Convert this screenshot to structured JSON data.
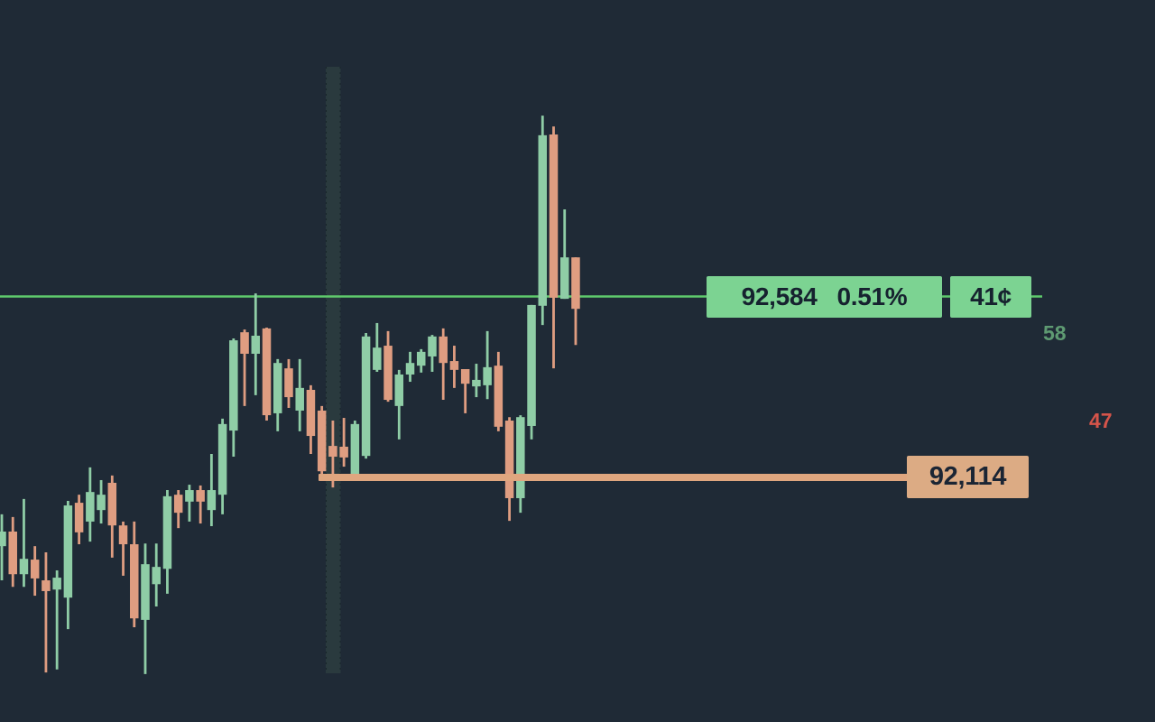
{
  "app": {
    "background_color": "#1f2a36"
  },
  "price_line": {
    "price_label": "92,584",
    "change_label": "0.51%",
    "spread_label": "41¢",
    "price_value": 92584,
    "line_color": "#5fc96c",
    "box_color": "#7cd392",
    "text_color": "#16222f"
  },
  "support_ray": {
    "price_label": "92,114",
    "price_value": 92114,
    "line_color": "#dfa67f",
    "box_color": "#dcab84",
    "text_color": "#1b2534"
  },
  "indicators": [
    {
      "value": "58",
      "color": "#5e9a72"
    },
    {
      "value": "47",
      "color": "#d5544a"
    }
  ],
  "highlight_band": {
    "color": "#2a3a3e",
    "edge_color": "rgba(10,22,24,0.55)"
  },
  "chart_data": {
    "type": "candlestick",
    "title": "",
    "xlabel": "",
    "ylabel": "",
    "x_axis_labels_visible": false,
    "y_axis_labels_visible": false,
    "grid": false,
    "visible_price_levels": [
      92584,
      92114
    ],
    "up_color": "#8fcda6",
    "down_color": "#df9d81",
    "candles_ohlc": [
      [
        91935,
        92018,
        91846,
        91973
      ],
      [
        91973,
        92011,
        91829,
        91862
      ],
      [
        91862,
        92058,
        91829,
        91902
      ],
      [
        91900,
        91935,
        91806,
        91851
      ],
      [
        91846,
        91919,
        91606,
        91818
      ],
      [
        91822,
        91872,
        91614,
        91853
      ],
      [
        91801,
        92053,
        91719,
        92041
      ],
      [
        92048,
        92069,
        91940,
        91971
      ],
      [
        91999,
        92140,
        91947,
        92076
      ],
      [
        92029,
        92107,
        91994,
        92069
      ],
      [
        92100,
        92119,
        91905,
        91989
      ],
      [
        91989,
        91999,
        91858,
        91940
      ],
      [
        91940,
        91999,
        91724,
        91747
      ],
      [
        91743,
        91942,
        91602,
        91888
      ],
      [
        91836,
        91942,
        91778,
        91881
      ],
      [
        91876,
        92081,
        91811,
        92065
      ],
      [
        92069,
        92081,
        91982,
        92022
      ],
      [
        92051,
        92095,
        91999,
        92081
      ],
      [
        92081,
        92093,
        91994,
        92051
      ],
      [
        92029,
        92175,
        91987,
        92081
      ],
      [
        92069,
        92267,
        92018,
        92253
      ],
      [
        92236,
        92476,
        92168,
        92471
      ],
      [
        92492,
        92499,
        92300,
        92436
      ],
      [
        92436,
        92593,
        92328,
        92483
      ],
      [
        92502,
        92504,
        92262,
        92276
      ],
      [
        92281,
        92422,
        92234,
        92412
      ],
      [
        92398,
        92422,
        92295,
        92323
      ],
      [
        92288,
        92422,
        92234,
        92347
      ],
      [
        92342,
        92354,
        92175,
        92222
      ],
      [
        92288,
        92300,
        92123,
        92130
      ],
      [
        92196,
        92262,
        92088,
        92168
      ],
      [
        92194,
        92269,
        92142,
        92166
      ],
      [
        92123,
        92262,
        92116,
        92253
      ],
      [
        92170,
        92490,
        92163,
        92481
      ],
      [
        92394,
        92516,
        92389,
        92452
      ],
      [
        92457,
        92495,
        92311,
        92316
      ],
      [
        92300,
        92394,
        92213,
        92382
      ],
      [
        92382,
        92441,
        92363,
        92412
      ],
      [
        92405,
        92448,
        92387,
        92441
      ],
      [
        92429,
        92485,
        92389,
        92481
      ],
      [
        92481,
        92502,
        92316,
        92412
      ],
      [
        92417,
        92457,
        92347,
        92394
      ],
      [
        92396,
        92396,
        92281,
        92358
      ],
      [
        92351,
        92410,
        92323,
        92368
      ],
      [
        92354,
        92495,
        92318,
        92401
      ],
      [
        92405,
        92441,
        92234,
        92246
      ],
      [
        92262,
        92271,
        92001,
        92060
      ],
      [
        92060,
        92276,
        92022,
        92271
      ],
      [
        92248,
        92563,
        92213,
        92563
      ],
      [
        92561,
        93056,
        92511,
        93005
      ],
      [
        93007,
        93028,
        92398,
        92582
      ],
      [
        92579,
        92812,
        92579,
        92687
      ],
      [
        92687,
        92687,
        92459,
        92553
      ]
    ]
  }
}
